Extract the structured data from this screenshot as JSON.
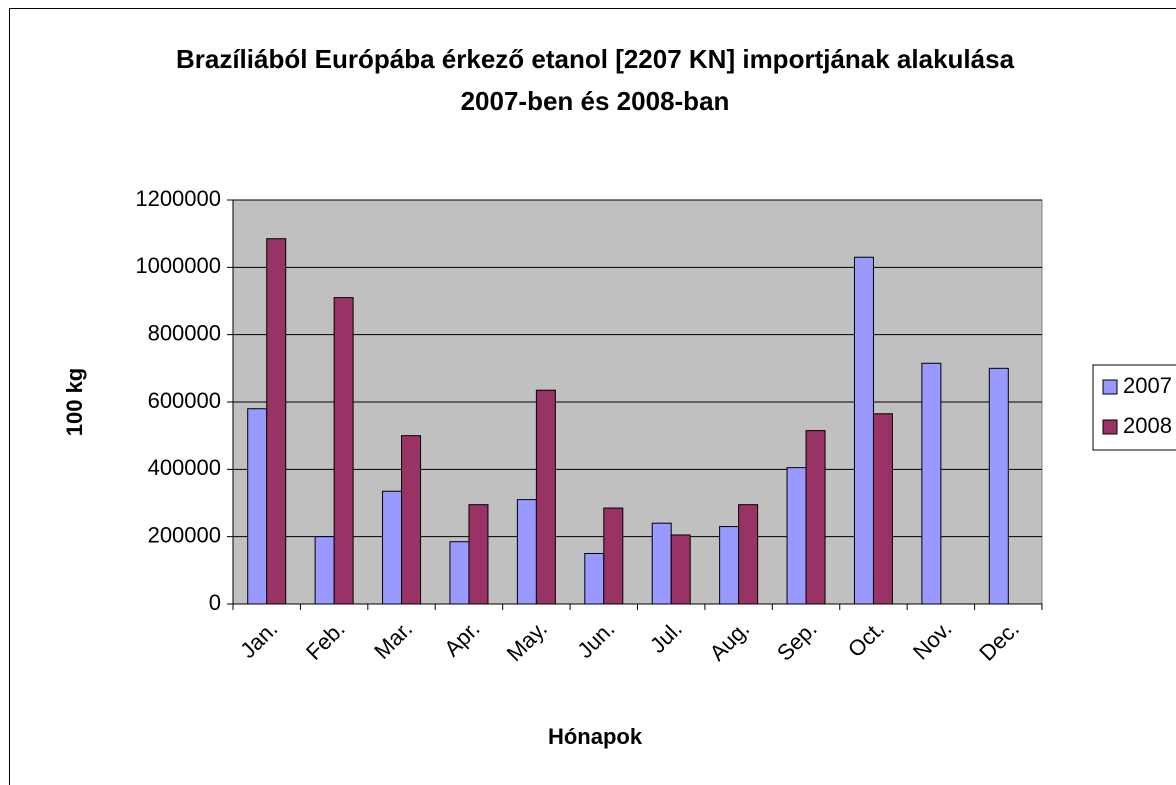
{
  "chart_data": {
    "type": "bar",
    "title": "Brazíliából Európába érkező etanol [2207 KN] importjának alakulása 2007-ben és 2008-ban",
    "x_label": "Hónapok",
    "y_label": "100 kg",
    "categories": [
      "Jan.",
      "Feb.",
      "Mar.",
      "Apr.",
      "May.",
      "Jun.",
      "Jul.",
      "Aug.",
      "Sep.",
      "Oct.",
      "Nov.",
      "Dec."
    ],
    "series": [
      {
        "name": "2007",
        "color": "#9999ff",
        "values": [
          580000,
          200000,
          335000,
          185000,
          310000,
          150000,
          240000,
          230000,
          405000,
          1030000,
          715000,
          700000
        ]
      },
      {
        "name": "2008",
        "color": "#993366",
        "values": [
          1085000,
          910000,
          500000,
          295000,
          635000,
          285000,
          205000,
          295000,
          515000,
          565000,
          null,
          null
        ]
      }
    ],
    "ylim": [
      0,
      1200000
    ],
    "yticks": [
      0,
      200000,
      400000,
      600000,
      800000,
      1000000,
      1200000
    ],
    "grid": true,
    "legend": "right",
    "plot_background": "#c0c0c0"
  }
}
